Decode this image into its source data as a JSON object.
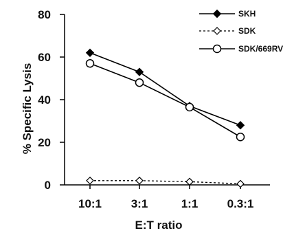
{
  "chart_data": {
    "type": "line",
    "categories": [
      "10:1",
      "3:1",
      "1:1",
      "0.3:1"
    ],
    "xlabel": "E:T ratio",
    "ylabel": "% Specific Lysis",
    "ylim": [
      0,
      80
    ],
    "yticks": [
      0,
      20,
      40,
      60,
      80
    ],
    "grid": false,
    "legend_position": "top-right",
    "series": [
      {
        "name": "SKH",
        "values": [
          62,
          53,
          37,
          28
        ],
        "marker": "filled-diamond",
        "line": "solid",
        "color": "#000000"
      },
      {
        "name": "SDK",
        "values": [
          2,
          2,
          1.5,
          0.5
        ],
        "marker": "open-diamond",
        "line": "dashed",
        "color": "#000000"
      },
      {
        "name": "SDK/669RV",
        "values": [
          57,
          48,
          36.5,
          22.5
        ],
        "marker": "open-circle",
        "line": "solid",
        "color": "#000000"
      }
    ]
  }
}
